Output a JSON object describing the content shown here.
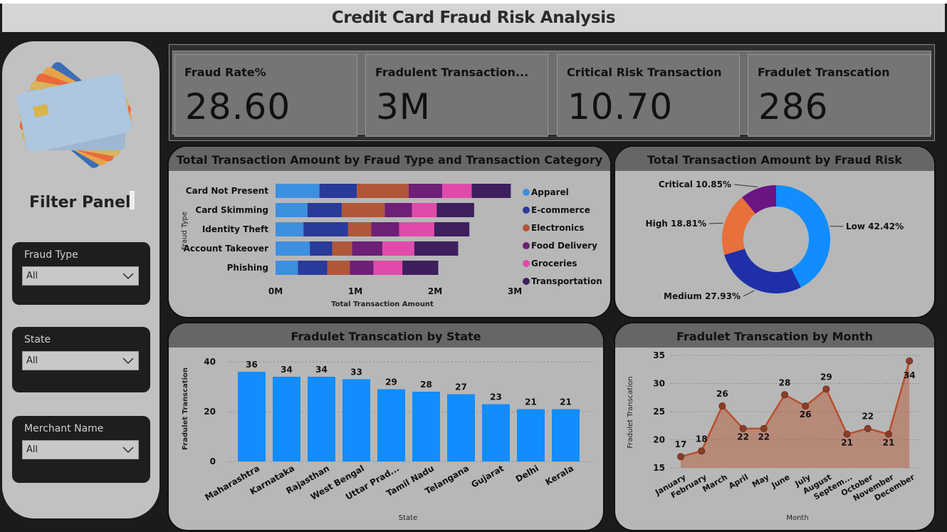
{
  "title": "Credit Card Fraud Risk Analysis",
  "filter_panel": {
    "title": "Filter Panel",
    "slicers": [
      {
        "label": "Fraud Type",
        "value": "All"
      },
      {
        "label": "State",
        "value": "All"
      },
      {
        "label": "Merchant Name",
        "value": "All"
      }
    ]
  },
  "kpis": [
    {
      "title": "Fraud Rate%",
      "value": "28.60"
    },
    {
      "title": "Fradulent Transaction...",
      "value": "3M"
    },
    {
      "title": "Critical Risk Transaction",
      "value": "10.70"
    },
    {
      "title": "Fradulet Transcation",
      "value": "286"
    }
  ],
  "colors": {
    "apparel": "#3d8fe0",
    "ecommerce": "#283a9a",
    "electronics": "#b0573a",
    "food_delivery": "#6e1f76",
    "groceries": "#e04aaa",
    "transportation": "#3e1f5e",
    "bar_blue": "#118dff",
    "line_orange": "#b94f2c"
  },
  "chart_data": [
    {
      "type": "bar",
      "orientation": "horizontal-stacked",
      "title": "Total Transaction Amount by Fraud Type and Transaction Category",
      "xlabel": "Total Transaction Amount",
      "ylabel": "Fraud Type",
      "xticks": [
        "0M",
        "1M",
        "2M",
        "3M"
      ],
      "xlim": [
        0,
        3
      ],
      "unit": "M",
      "legend_position": "right",
      "categories": [
        "Card Not Present",
        "Card Skimming",
        "Identity Theft",
        "Account Takeover",
        "Phishing"
      ],
      "series": [
        {
          "name": "Apparel",
          "color": "#3d8fe0",
          "values": [
            0.55,
            0.4,
            0.35,
            0.43,
            0.28
          ]
        },
        {
          "name": "E-commerce",
          "color": "#283a9a",
          "values": [
            0.47,
            0.43,
            0.56,
            0.28,
            0.37
          ]
        },
        {
          "name": "Electronics",
          "color": "#b0573a",
          "values": [
            0.65,
            0.54,
            0.29,
            0.25,
            0.28
          ]
        },
        {
          "name": "Food Delivery",
          "color": "#6e1f76",
          "values": [
            0.42,
            0.34,
            0.35,
            0.38,
            0.3
          ]
        },
        {
          "name": "Groceries",
          "color": "#e04aaa",
          "values": [
            0.37,
            0.31,
            0.44,
            0.4,
            0.36
          ]
        },
        {
          "name": "Transportation",
          "color": "#3e1f5e",
          "values": [
            0.49,
            0.47,
            0.44,
            0.55,
            0.45
          ]
        }
      ]
    },
    {
      "type": "pie",
      "variant": "donut",
      "title": "Total Transaction Amount by Fraud Risk",
      "slices": [
        {
          "name": "Low",
          "label": "Low 42.42%",
          "value": 42.42,
          "color": "#118dff"
        },
        {
          "name": "Medium",
          "label": "Medium 27.93%",
          "value": 27.93,
          "color": "#1f2fa8"
        },
        {
          "name": "High",
          "label": "High 18.81%",
          "value": 18.81,
          "color": "#e8703a"
        },
        {
          "name": "Critical",
          "label": "Critical 10.85%",
          "value": 10.85,
          "color": "#6b1583"
        }
      ]
    },
    {
      "type": "bar",
      "title": "Fradulet Transcation by State",
      "xlabel": "State",
      "ylabel": "Fradulet Transcation",
      "ylim": [
        0,
        40
      ],
      "yticks": [
        0,
        20,
        40
      ],
      "categories": [
        "Maharashtra",
        "Karnataka",
        "Rajasthan",
        "West Bengal",
        "Uttar Prad...",
        "Tamil Nadu",
        "Telangana",
        "Gujarat",
        "Delhi",
        "Kerala"
      ],
      "values": [
        36,
        34,
        34,
        33,
        29,
        28,
        27,
        23,
        21,
        21
      ]
    },
    {
      "type": "area",
      "title": "Fradulet Transcation by Month",
      "xlabel": "Month",
      "ylabel": "Fradulet Transcation",
      "ylim": [
        15,
        35
      ],
      "yticks": [
        15,
        20,
        25,
        30,
        35
      ],
      "categories": [
        "January",
        "February",
        "March",
        "April",
        "May",
        "June",
        "July",
        "August",
        "Septem...",
        "October",
        "November",
        "December"
      ],
      "values": [
        17,
        18,
        26,
        22,
        22,
        28,
        26,
        29,
        21,
        22,
        21,
        34
      ]
    }
  ]
}
